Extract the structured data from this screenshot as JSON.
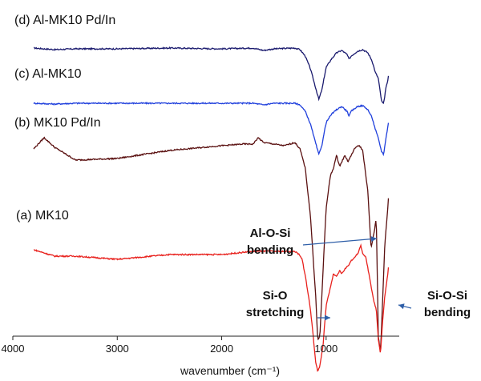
{
  "chart_data": {
    "type": "line",
    "xlabel": "wavenumber (cm⁻¹)",
    "xlim": [
      4000,
      300
    ],
    "x_reversed": true,
    "x_ticks": [
      "4000",
      "3000",
      "2000",
      "1000"
    ],
    "y_axis_shown": false,
    "grid": false,
    "series": [
      {
        "name": "(d) Al-MK10 Pd/In",
        "color": "#1a1a6e",
        "offset": 360,
        "points": [
          [
            3800,
            0
          ],
          [
            3600,
            -2
          ],
          [
            3400,
            -1
          ],
          [
            3000,
            -1
          ],
          [
            2500,
            0
          ],
          [
            2000,
            -1
          ],
          [
            1700,
            0
          ],
          [
            1600,
            -3
          ],
          [
            1500,
            -1
          ],
          [
            1300,
            0
          ],
          [
            1250,
            -2
          ],
          [
            1200,
            -10
          ],
          [
            1150,
            -26
          ],
          [
            1100,
            -50
          ],
          [
            1070,
            -64
          ],
          [
            1040,
            -52
          ],
          [
            1000,
            -24
          ],
          [
            950,
            -14
          ],
          [
            900,
            -6
          ],
          [
            850,
            -3
          ],
          [
            800,
            -8
          ],
          [
            780,
            -14
          ],
          [
            760,
            -10
          ],
          [
            700,
            -4
          ],
          [
            650,
            -2
          ],
          [
            600,
            -6
          ],
          [
            560,
            -16
          ],
          [
            530,
            -30
          ],
          [
            500,
            -38
          ],
          [
            470,
            -66
          ],
          [
            450,
            -70
          ],
          [
            430,
            -52
          ],
          [
            410,
            -40
          ],
          [
            400,
            -32
          ]
        ]
      },
      {
        "name": "(c) Al-MK10",
        "color": "#1f3fdc",
        "offset": 291,
        "points": [
          [
            3800,
            0
          ],
          [
            3600,
            -1
          ],
          [
            3400,
            0
          ],
          [
            3000,
            0
          ],
          [
            2500,
            0
          ],
          [
            2000,
            0
          ],
          [
            1700,
            0
          ],
          [
            1600,
            -2
          ],
          [
            1500,
            0
          ],
          [
            1300,
            0
          ],
          [
            1250,
            -2
          ],
          [
            1200,
            -10
          ],
          [
            1150,
            -26
          ],
          [
            1100,
            -50
          ],
          [
            1070,
            -64
          ],
          [
            1040,
            -52
          ],
          [
            1000,
            -24
          ],
          [
            950,
            -14
          ],
          [
            900,
            -8
          ],
          [
            850,
            -4
          ],
          [
            800,
            -10
          ],
          [
            780,
            -16
          ],
          [
            760,
            -10
          ],
          [
            700,
            -4
          ],
          [
            650,
            -3
          ],
          [
            600,
            -8
          ],
          [
            560,
            -18
          ],
          [
            530,
            -32
          ],
          [
            500,
            -44
          ],
          [
            470,
            -60
          ],
          [
            450,
            -64
          ],
          [
            430,
            -46
          ],
          [
            410,
            -30
          ],
          [
            400,
            -20
          ]
        ]
      },
      {
        "name": "(b) MK10 Pd/In",
        "color": "#5a1010",
        "offset": 240,
        "points": [
          [
            3800,
            -6
          ],
          [
            3700,
            8
          ],
          [
            3600,
            -4
          ],
          [
            3400,
            -20
          ],
          [
            3000,
            -18
          ],
          [
            2500,
            -8
          ],
          [
            2000,
            -2
          ],
          [
            1800,
            0
          ],
          [
            1700,
            0
          ],
          [
            1650,
            8
          ],
          [
            1600,
            2
          ],
          [
            1500,
            0
          ],
          [
            1400,
            -2
          ],
          [
            1300,
            2
          ],
          [
            1250,
            -6
          ],
          [
            1200,
            -30
          ],
          [
            1150,
            -90
          ],
          [
            1100,
            -190
          ],
          [
            1080,
            -245
          ],
          [
            1060,
            -240
          ],
          [
            1030,
            -160
          ],
          [
            1000,
            -80
          ],
          [
            960,
            -40
          ],
          [
            930,
            -30
          ],
          [
            900,
            -14
          ],
          [
            870,
            -28
          ],
          [
            850,
            -22
          ],
          [
            820,
            -14
          ],
          [
            790,
            -22
          ],
          [
            760,
            -14
          ],
          [
            720,
            -4
          ],
          [
            680,
            -2
          ],
          [
            650,
            -8
          ],
          [
            600,
            -60
          ],
          [
            570,
            -130
          ],
          [
            540,
            -110
          ],
          [
            520,
            -92
          ],
          [
            500,
            -240
          ],
          [
            480,
            -260
          ],
          [
            460,
            -200
          ],
          [
            440,
            -130
          ],
          [
            410,
            -80
          ],
          [
            400,
            -60
          ]
        ]
      },
      {
        "name": "(a) MK10",
        "color": "#e8201c",
        "offset": 108,
        "points": [
          [
            3800,
            0
          ],
          [
            3700,
            -4
          ],
          [
            3600,
            -8
          ],
          [
            3400,
            -8
          ],
          [
            3000,
            -12
          ],
          [
            2500,
            -6
          ],
          [
            2000,
            -6
          ],
          [
            1700,
            -2
          ],
          [
            1500,
            -2
          ],
          [
            1300,
            -2
          ],
          [
            1260,
            -6
          ],
          [
            1230,
            -12
          ],
          [
            1200,
            -32
          ],
          [
            1150,
            -74
          ],
          [
            1100,
            -140
          ],
          [
            1080,
            -152
          ],
          [
            1060,
            -145
          ],
          [
            1030,
            -120
          ],
          [
            1000,
            -70
          ],
          [
            960,
            -48
          ],
          [
            930,
            -30
          ],
          [
            900,
            -34
          ],
          [
            870,
            -26
          ],
          [
            850,
            -30
          ],
          [
            820,
            -24
          ],
          [
            790,
            -20
          ],
          [
            760,
            -14
          ],
          [
            720,
            -8
          ],
          [
            690,
            -4
          ],
          [
            670,
            6
          ],
          [
            650,
            -4
          ],
          [
            620,
            -10
          ],
          [
            590,
            -30
          ],
          [
            560,
            -52
          ],
          [
            540,
            -66
          ],
          [
            520,
            -74
          ],
          [
            500,
            -112
          ],
          [
            480,
            -130
          ],
          [
            460,
            -92
          ],
          [
            440,
            -60
          ],
          [
            410,
            -30
          ],
          [
            400,
            -16
          ]
        ]
      }
    ],
    "annotations": [
      {
        "lines": [
          "Al-O-Si",
          "bending"
        ]
      },
      {
        "lines": [
          "Si-O",
          "stretching"
        ]
      },
      {
        "lines": [
          "Si-O-Si",
          "bending"
        ]
      }
    ]
  }
}
